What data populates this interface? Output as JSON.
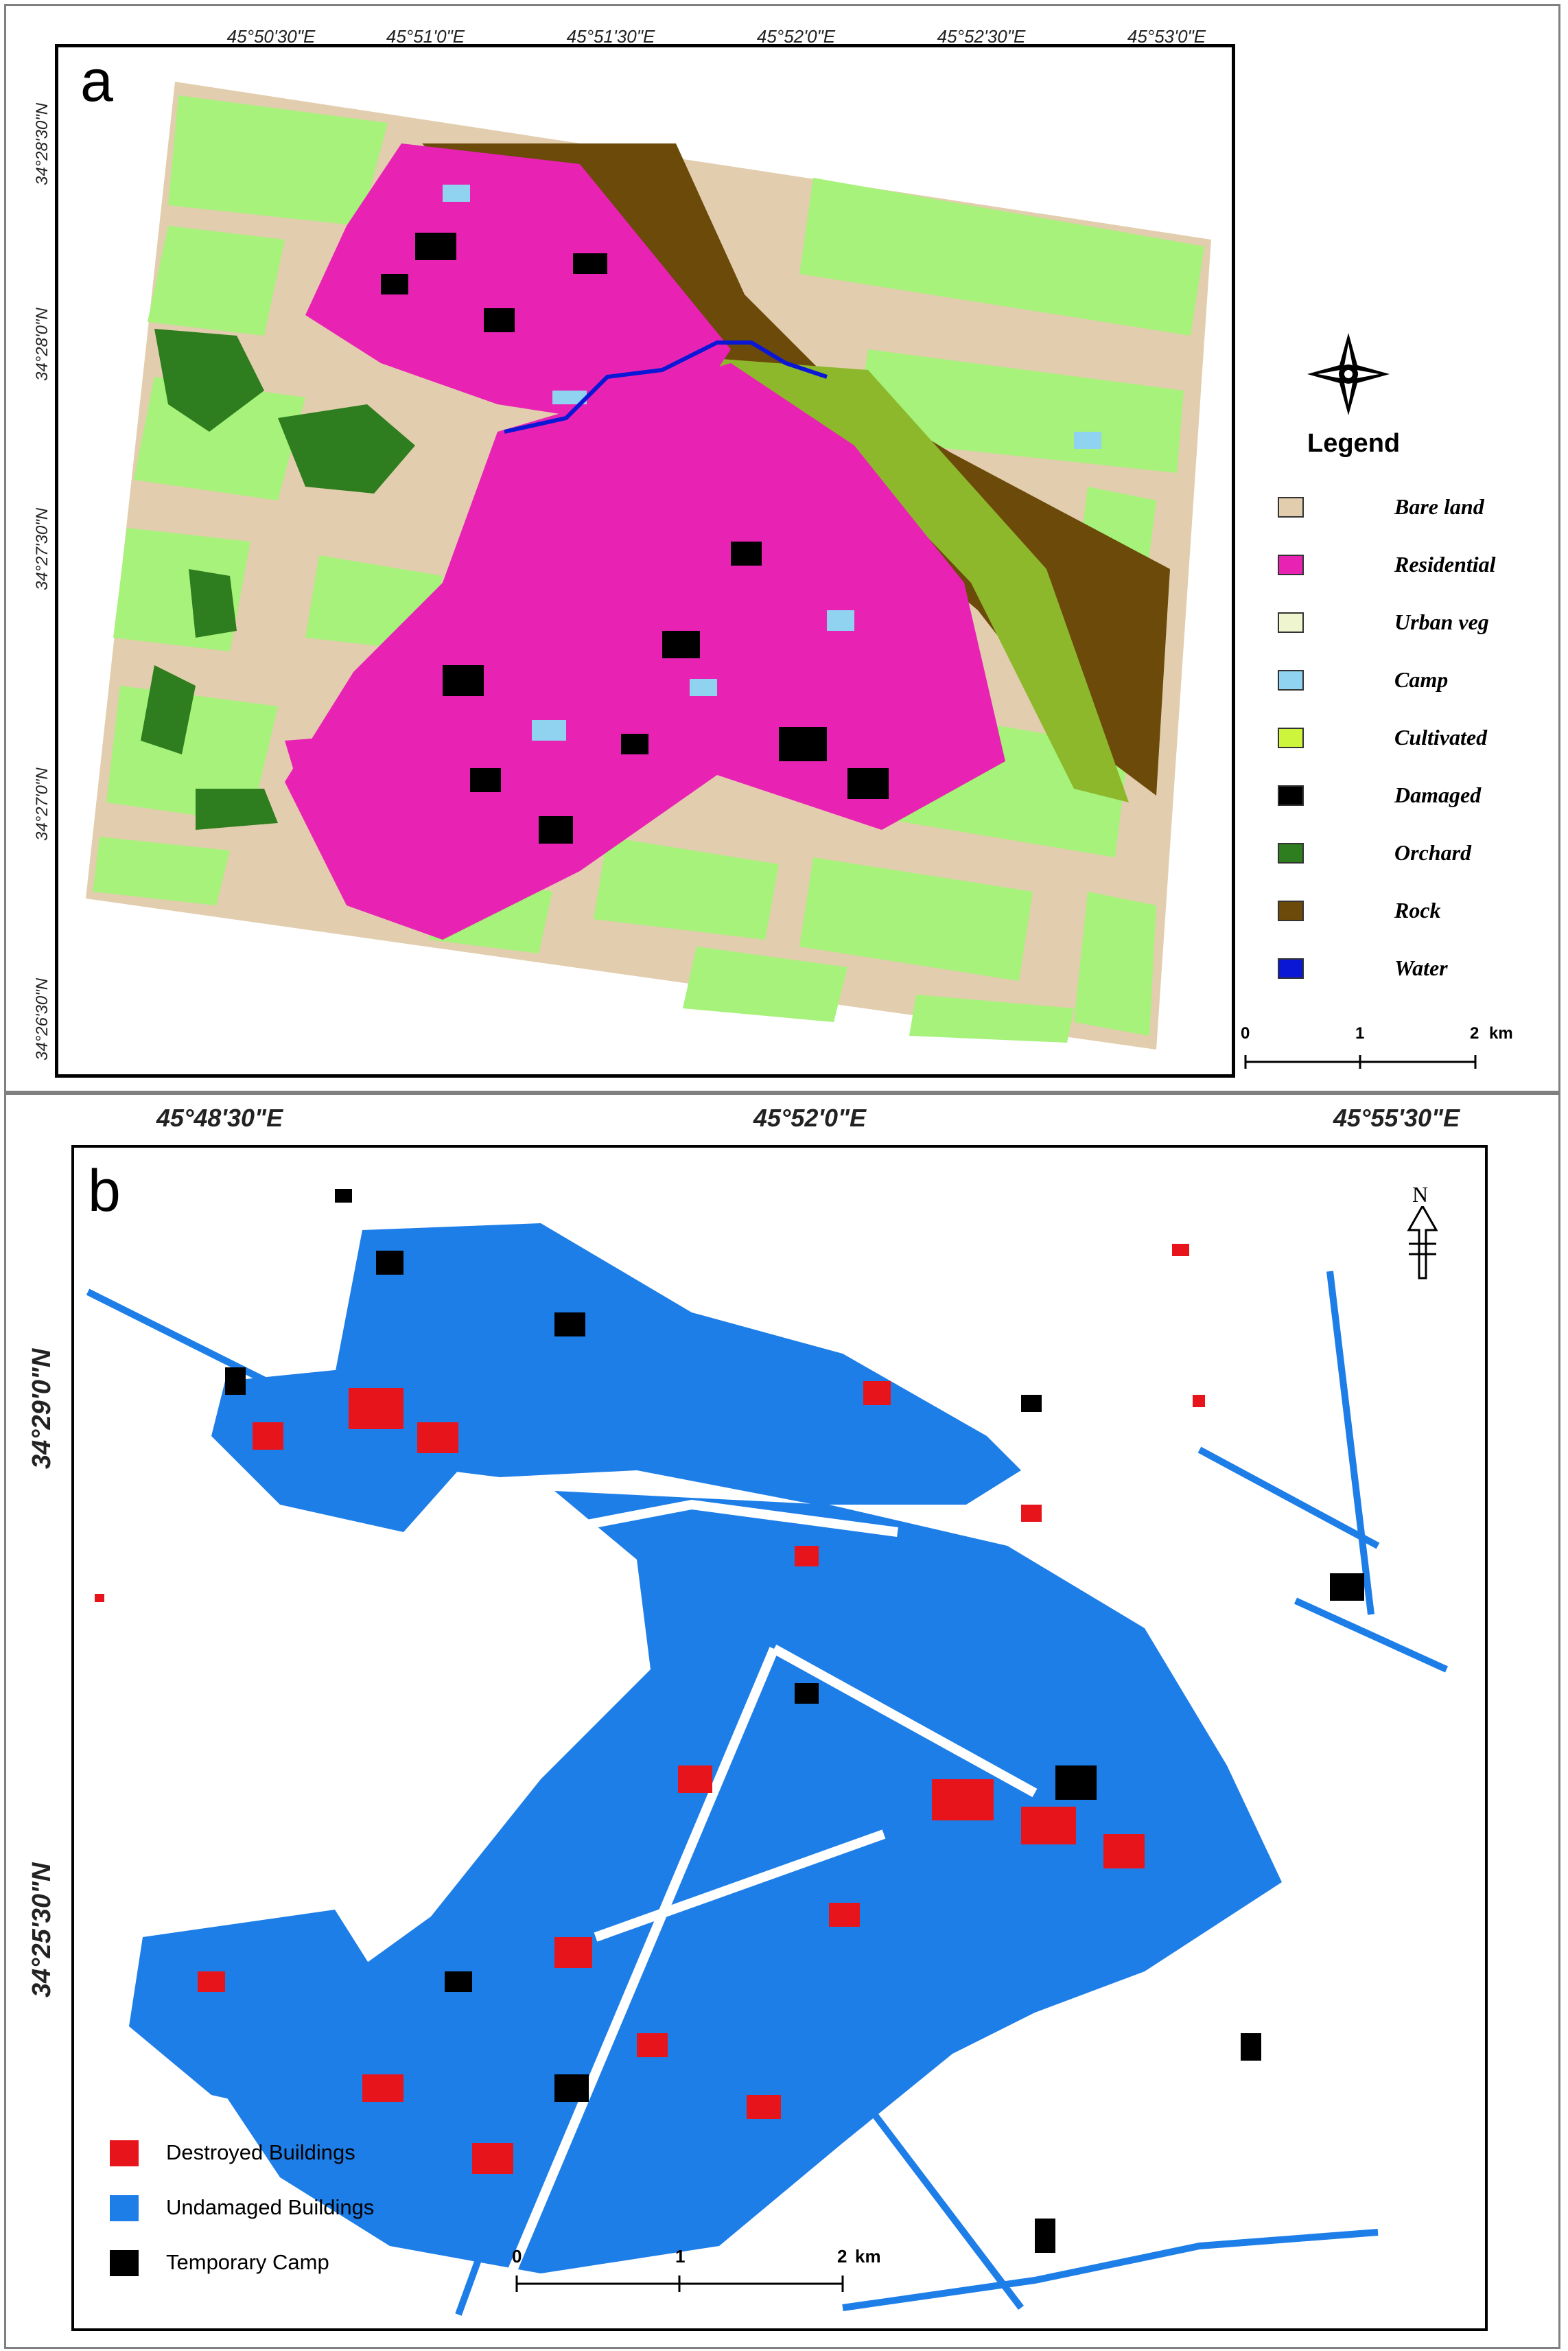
{
  "panel_a": {
    "letter": "a",
    "top_coords": [
      "45°50'30\"E",
      "45°51'0\"E",
      "45°51'30\"E",
      "45°52'0\"E",
      "45°52'30\"E",
      "45°53'0\"E"
    ],
    "left_coords": [
      "34°28'30\"N",
      "34°28'0\"N",
      "34°27'30\"N",
      "34°27'0\"N",
      "34°26'30\"N"
    ],
    "legend_title": "Legend",
    "legend": [
      {
        "label": "Bare land",
        "color": "#e2ceae"
      },
      {
        "label": "Residential",
        "color": "#e823b4"
      },
      {
        "label": "Urban veg",
        "color": "#eef5cf"
      },
      {
        "label": "Camp",
        "color": "#8fd3f0"
      },
      {
        "label": "Cultivated",
        "color": "#ccf53c"
      },
      {
        "label": "Damaged",
        "color": "#000000"
      },
      {
        "label": "Orchard",
        "color": "#2e7d1e"
      },
      {
        "label": "Rock",
        "color": "#6b4a0a"
      },
      {
        "label": "Water",
        "color": "#0a18d6"
      }
    ],
    "scale_labels": [
      "0",
      "1",
      "2",
      "km"
    ],
    "compass_icon": "compass-rose-icon"
  },
  "panel_b": {
    "letter": "b",
    "top_coords": [
      "45°48'30\"E",
      "45°52'0\"E",
      "45°55'30\"E"
    ],
    "left_coords": [
      "34°29'0\"N",
      "34°25'30\"N"
    ],
    "north_label": "N",
    "legend": [
      {
        "label": "Destroyed Buildings",
        "color": "#e8141c"
      },
      {
        "label": "Undamaged Buildings",
        "color": "#1e7ee8"
      },
      {
        "label": "Temporary Camp",
        "color": "#000000"
      }
    ],
    "scale_labels": [
      "0",
      "1",
      "2",
      "km"
    ]
  }
}
